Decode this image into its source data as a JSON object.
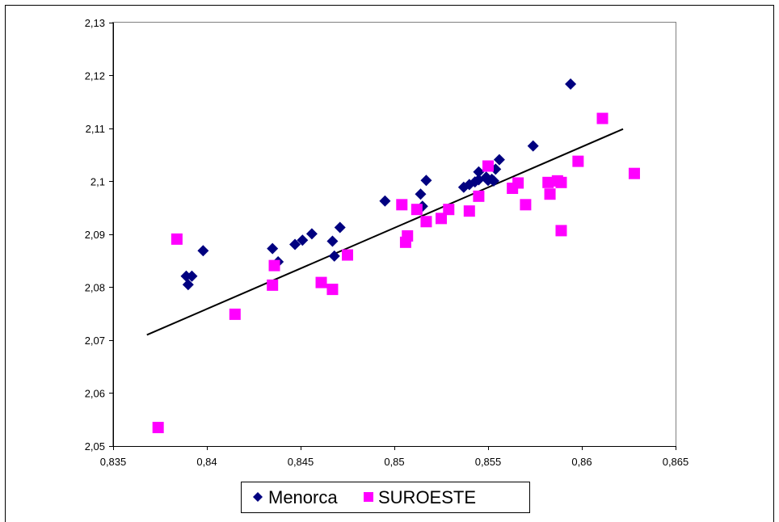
{
  "chart_data": {
    "type": "scatter",
    "title": "",
    "xlabel": "",
    "ylabel": "",
    "xlim": [
      0.835,
      0.865
    ],
    "ylim": [
      2.05,
      2.13
    ],
    "x_ticks": [
      0.835,
      0.84,
      0.845,
      0.85,
      0.855,
      0.86,
      0.865
    ],
    "x_tick_labels": [
      "0,835",
      "0,84",
      "0,845",
      "0,85",
      "0,855",
      "0,86",
      "0,865"
    ],
    "y_ticks": [
      2.05,
      2.06,
      2.07,
      2.08,
      2.09,
      2.1,
      2.11,
      2.12,
      2.13
    ],
    "y_tick_labels": [
      "2,05",
      "2,06",
      "2,07",
      "2,08",
      "2,09",
      "2,1",
      "2,11",
      "2,12",
      "2,13"
    ],
    "grid": false,
    "legend_position": "bottom",
    "series": [
      {
        "name": "Menorca",
        "marker": "diamond",
        "color": "#000080",
        "points": [
          [
            0.8389,
            2.0821
          ],
          [
            0.839,
            2.0805
          ],
          [
            0.8392,
            2.0821
          ],
          [
            0.8398,
            2.0869
          ],
          [
            0.8435,
            2.0873
          ],
          [
            0.8438,
            2.0848
          ],
          [
            0.8447,
            2.0881
          ],
          [
            0.8451,
            2.0889
          ],
          [
            0.8456,
            2.0901
          ],
          [
            0.8467,
            2.0887
          ],
          [
            0.8468,
            2.0859
          ],
          [
            0.8471,
            2.0913
          ],
          [
            0.8495,
            2.0963
          ],
          [
            0.8514,
            2.0976
          ],
          [
            0.8515,
            2.0953
          ],
          [
            0.8517,
            2.1002
          ],
          [
            0.8537,
            2.0989
          ],
          [
            0.854,
            2.0994
          ],
          [
            0.8543,
            2.0999
          ],
          [
            0.8545,
            2.1018
          ],
          [
            0.8545,
            2.1003
          ],
          [
            0.8549,
            2.1008
          ],
          [
            0.855,
            2.1002
          ],
          [
            0.8552,
            2.1004
          ],
          [
            0.8553,
            2.1001
          ],
          [
            0.8554,
            2.1023
          ],
          [
            0.8556,
            2.1041
          ],
          [
            0.8574,
            2.1067
          ],
          [
            0.8594,
            2.1184
          ]
        ]
      },
      {
        "name": "SUROESTE",
        "marker": "square",
        "color": "#ff00ff",
        "points": [
          [
            0.8374,
            2.0535
          ],
          [
            0.8384,
            2.0891
          ],
          [
            0.8415,
            2.0749
          ],
          [
            0.8435,
            2.0804
          ],
          [
            0.8436,
            2.0841
          ],
          [
            0.8461,
            2.0809
          ],
          [
            0.8467,
            2.0796
          ],
          [
            0.8475,
            2.0861
          ],
          [
            0.8504,
            2.0956
          ],
          [
            0.8506,
            2.0885
          ],
          [
            0.8507,
            2.0897
          ],
          [
            0.8512,
            2.0947
          ],
          [
            0.8517,
            2.0924
          ],
          [
            0.8525,
            2.093
          ],
          [
            0.8529,
            2.0947
          ],
          [
            0.854,
            2.0944
          ],
          [
            0.8545,
            2.0972
          ],
          [
            0.855,
            2.1029
          ],
          [
            0.8563,
            2.0987
          ],
          [
            0.8566,
            2.0997
          ],
          [
            0.857,
            2.0956
          ],
          [
            0.8582,
            2.0998
          ],
          [
            0.8583,
            2.0976
          ],
          [
            0.8587,
            2.1001
          ],
          [
            0.8589,
            2.0998
          ],
          [
            0.8589,
            2.0907
          ],
          [
            0.8598,
            2.1038
          ],
          [
            0.8611,
            2.1119
          ],
          [
            0.8628,
            2.1015
          ]
        ]
      }
    ],
    "trendline": {
      "color": "#000000",
      "start": [
        0.8368,
        2.071
      ],
      "end": [
        0.8622,
        2.1099
      ]
    }
  }
}
